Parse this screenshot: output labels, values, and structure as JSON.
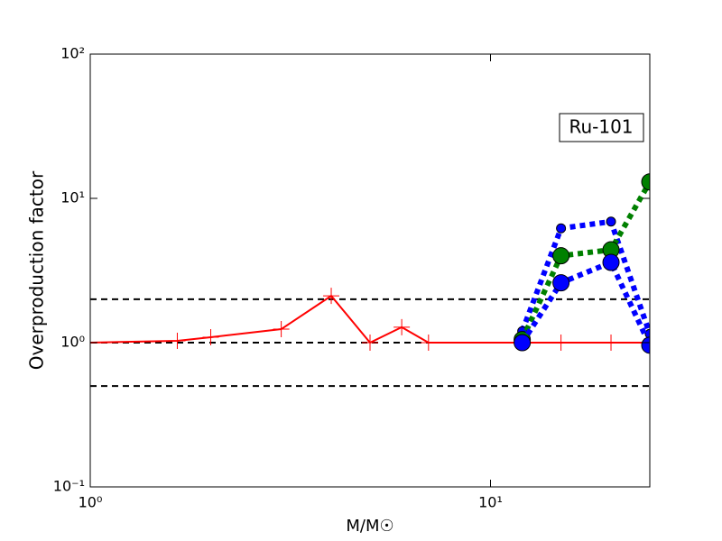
{
  "chart_data": {
    "type": "line",
    "xlabel": "M/M☉",
    "ylabel": "Overproduction factor",
    "annotation": "Ru-101",
    "xscale": "log",
    "yscale": "log",
    "xlim": [
      1,
      25
    ],
    "ylim": [
      0.1,
      100
    ],
    "xticks": [
      {
        "value": 1,
        "label": "10⁰"
      },
      {
        "value": 10,
        "label": "10¹"
      }
    ],
    "yticks": [
      {
        "value": 0.1,
        "label": "10⁻¹"
      },
      {
        "value": 1,
        "label": "10⁰"
      },
      {
        "value": 10,
        "label": "10¹"
      },
      {
        "value": 100,
        "label": "10²"
      }
    ],
    "hlines": [
      0.5,
      1,
      2
    ],
    "series": [
      {
        "color": "#ff0000",
        "style": "solid",
        "marker": "plus",
        "x": [
          1,
          1.65,
          2,
          3,
          4,
          5,
          6,
          7,
          12,
          15,
          20,
          25
        ],
        "values": [
          1.0,
          1.03,
          1.09,
          1.24,
          2.11,
          1.0,
          1.28,
          1.0,
          1.0,
          1.0,
          1.0,
          1.0
        ]
      },
      {
        "color": "#0000ff",
        "style": "dotted",
        "marker": "small-circle",
        "x": [
          12,
          15,
          20,
          25
        ],
        "values": [
          1.2,
          6.2,
          6.9,
          1.15
        ]
      },
      {
        "color": "#008000",
        "style": "dotted",
        "marker": "circle",
        "x": [
          12,
          15,
          20,
          25
        ],
        "values": [
          1.05,
          4.0,
          4.4,
          13
        ]
      },
      {
        "color": "#0000ff",
        "style": "dotted",
        "marker": "circle",
        "x": [
          12,
          15,
          20,
          25
        ],
        "values": [
          1.0,
          2.6,
          3.6,
          0.96
        ]
      }
    ]
  }
}
